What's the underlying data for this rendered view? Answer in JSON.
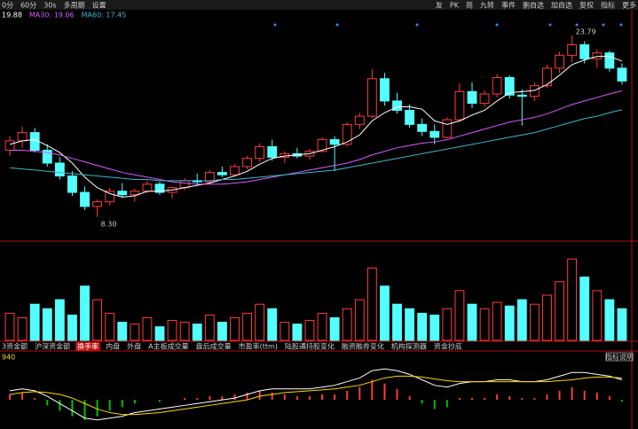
{
  "toolbar": {
    "left": [
      "0分",
      "60分",
      "30s",
      "多周期",
      "设置"
    ],
    "right": [
      "友",
      "PK",
      "简",
      "九转",
      "事件",
      "删自选",
      "加自选",
      "复权",
      "指标",
      "更多"
    ]
  },
  "ma_strip": [
    "19.88",
    "MA30: 19.06",
    "MA60: 17.45"
  ],
  "tabs": [
    "3资金额",
    "沪深资金额",
    "换手率",
    "内盘",
    "外盘",
    "A主板成交量",
    "盘后成交量",
    "市盈率(ttm)",
    "陆股通持股变化",
    "融资融券变化",
    "机构探测器",
    "资金抄底"
  ],
  "macd_label": "940",
  "indicator_button": "指标说明",
  "chart_data": [
    {
      "type": "candlestick",
      "up_color": "#ff3b3b",
      "down_color": "#54ffff",
      "ylim": [
        7,
        25
      ],
      "low_label": "8.30",
      "high_label": "23.79",
      "open": [
        14.0,
        14.8,
        15.5,
        14.0,
        12.9,
        11.8,
        10.4,
        9.2,
        9.6,
        10.5,
        10.2,
        10.5,
        11.1,
        10.4,
        10.8,
        11.4,
        11.3,
        12.1,
        11.9,
        12.6,
        13.3,
        14.3,
        13.4,
        13.7,
        13.5,
        13.9,
        14.9,
        14.5,
        16.2,
        16.9,
        20.1,
        18.2,
        17.4,
        16.2,
        15.6,
        15.1,
        16.6,
        19.0,
        18.0,
        18.8,
        20.2,
        18.7,
        18.6,
        19.5,
        21.0,
        22.1,
        23.0,
        21.8,
        22.3,
        21.0
      ],
      "high": [
        15.2,
        16.0,
        15.9,
        14.5,
        13.4,
        12.2,
        10.9,
        9.8,
        10.8,
        11.2,
        10.7,
        11.4,
        11.3,
        10.9,
        11.6,
        12.0,
        12.3,
        12.6,
        12.8,
        13.5,
        14.6,
        14.9,
        13.9,
        14.2,
        14.1,
        15.1,
        15.2,
        16.4,
        17.2,
        20.9,
        20.6,
        18.9,
        17.9,
        16.7,
        16.2,
        16.8,
        19.7,
        19.8,
        19.1,
        20.5,
        20.4,
        19.2,
        19.8,
        21.3,
        22.4,
        23.79,
        23.3,
        22.6,
        22.5,
        21.4
      ],
      "low": [
        13.5,
        14.2,
        13.8,
        12.6,
        11.5,
        10.1,
        8.9,
        8.3,
        9.3,
        10.0,
        9.6,
        10.3,
        10.2,
        9.9,
        10.6,
        11.0,
        11.1,
        11.7,
        11.8,
        12.4,
        13.0,
        13.1,
        12.9,
        13.3,
        13.2,
        13.8,
        12.2,
        14.3,
        15.8,
        16.7,
        17.8,
        17.1,
        15.9,
        15.2,
        14.5,
        15.0,
        16.4,
        17.6,
        17.7,
        18.5,
        18.4,
        16.1,
        18.2,
        19.3,
        20.6,
        21.5,
        21.4,
        21.0,
        20.7,
        19.6
      ],
      "close": [
        14.8,
        15.5,
        14.0,
        12.9,
        11.8,
        10.4,
        9.2,
        9.6,
        10.5,
        10.2,
        10.5,
        11.1,
        10.4,
        10.8,
        11.4,
        11.3,
        12.1,
        11.9,
        12.6,
        13.3,
        14.3,
        13.4,
        13.7,
        13.5,
        13.9,
        14.9,
        14.5,
        16.2,
        16.9,
        20.1,
        18.2,
        17.4,
        16.2,
        15.6,
        15.1,
        16.6,
        19.0,
        18.0,
        18.8,
        20.2,
        18.7,
        18.6,
        19.5,
        21.0,
        22.1,
        23.0,
        21.8,
        22.3,
        21.0,
        19.9
      ],
      "lines": [
        {
          "color": "#ffffff",
          "values": [
            14.5,
            14.8,
            14.9,
            14.4,
            13.8,
            12.9,
            11.7,
            10.8,
            10.3,
            10.0,
            10.1,
            10.5,
            10.5,
            10.6,
            10.8,
            11.0,
            11.2,
            11.5,
            11.8,
            12.2,
            12.8,
            13.3,
            13.5,
            13.6,
            13.7,
            14.0,
            14.3,
            14.7,
            15.3,
            16.5,
            17.2,
            17.7,
            17.7,
            17.5,
            16.5,
            16.2,
            16.5,
            17.0,
            17.4,
            18.2,
            18.9,
            19.0,
            19.1,
            19.6,
            20.4,
            21.3,
            21.7,
            22.0,
            22.0,
            21.6
          ]
        },
        {
          "color": "#d75cff",
          "values": [
            14.0,
            14.0,
            13.9,
            13.8,
            13.6,
            13.3,
            13.0,
            12.7,
            12.4,
            12.1,
            11.9,
            11.7,
            11.5,
            11.3,
            11.2,
            11.1,
            11.1,
            11.1,
            11.2,
            11.3,
            11.5,
            11.7,
            11.9,
            12.1,
            12.3,
            12.5,
            12.7,
            12.9,
            13.2,
            13.6,
            13.9,
            14.2,
            14.4,
            14.6,
            14.7,
            14.9,
            15.2,
            15.5,
            15.8,
            16.1,
            16.4,
            16.6,
            16.8,
            17.1,
            17.5,
            17.9,
            18.2,
            18.5,
            18.8,
            19.06
          ]
        },
        {
          "color": "#3fb7c8",
          "values": [
            12.5,
            12.4,
            12.3,
            12.2,
            12.1,
            12.0,
            11.9,
            11.8,
            11.7,
            11.6,
            11.5,
            11.5,
            11.4,
            11.4,
            11.4,
            11.4,
            11.4,
            11.5,
            11.5,
            11.6,
            11.7,
            11.8,
            11.9,
            12.0,
            12.1,
            12.2,
            12.3,
            12.5,
            12.7,
            12.9,
            13.1,
            13.3,
            13.5,
            13.7,
            13.9,
            14.1,
            14.3,
            14.5,
            14.7,
            14.9,
            15.1,
            15.3,
            15.5,
            15.8,
            16.1,
            16.4,
            16.7,
            16.9,
            17.2,
            17.45
          ]
        }
      ]
    },
    {
      "type": "bar",
      "ylim": [
        0,
        100
      ],
      "values": [
        30,
        25,
        40,
        35,
        45,
        28,
        60,
        45,
        30,
        20,
        18,
        25,
        15,
        22,
        20,
        18,
        28,
        20,
        25,
        30,
        40,
        35,
        20,
        18,
        22,
        30,
        25,
        35,
        45,
        80,
        60,
        40,
        35,
        30,
        28,
        35,
        55,
        40,
        35,
        42,
        38,
        45,
        40,
        50,
        65,
        90,
        70,
        55,
        45,
        35
      ]
    },
    {
      "type": "bar",
      "ylim": [
        -1.5,
        2
      ],
      "up_color": "#ff3b3b",
      "down_color": "#00c000",
      "values": [
        0.3,
        0.4,
        0.1,
        -0.3,
        -0.6,
        -0.9,
        -1.1,
        -0.9,
        -0.6,
        -0.4,
        -0.2,
        0.0,
        -0.1,
        0.0,
        0.1,
        0.1,
        0.2,
        0.2,
        0.3,
        0.4,
        0.5,
        0.4,
        0.3,
        0.2,
        0.2,
        0.3,
        0.3,
        0.5,
        0.7,
        1.1,
        0.9,
        0.6,
        0.2,
        -0.2,
        -0.5,
        -0.4,
        0.1,
        0.1,
        0.1,
        0.3,
        0.2,
        0.1,
        0.1,
        0.3,
        0.5,
        0.7,
        0.5,
        0.4,
        0.2,
        -0.1
      ],
      "lines": [
        {
          "color": "#ffffff",
          "values": [
            0.5,
            0.6,
            0.5,
            0.2,
            -0.2,
            -0.6,
            -1.0,
            -1.1,
            -1.0,
            -0.9,
            -0.7,
            -0.6,
            -0.5,
            -0.4,
            -0.3,
            -0.2,
            -0.1,
            0.0,
            0.1,
            0.3,
            0.5,
            0.6,
            0.6,
            0.6,
            0.6,
            0.7,
            0.8,
            1.0,
            1.2,
            1.6,
            1.7,
            1.6,
            1.4,
            1.1,
            0.8,
            0.7,
            0.9,
            1.0,
            1.0,
            1.1,
            1.1,
            1.0,
            1.0,
            1.1,
            1.3,
            1.5,
            1.5,
            1.4,
            1.3,
            1.1
          ]
        },
        {
          "color": "#ffd700",
          "values": [
            0.3,
            0.4,
            0.45,
            0.4,
            0.3,
            0.1,
            -0.2,
            -0.5,
            -0.7,
            -0.8,
            -0.8,
            -0.75,
            -0.7,
            -0.6,
            -0.5,
            -0.4,
            -0.3,
            -0.2,
            -0.1,
            0.0,
            0.2,
            0.3,
            0.4,
            0.45,
            0.5,
            0.55,
            0.6,
            0.7,
            0.8,
            1.0,
            1.2,
            1.3,
            1.3,
            1.25,
            1.15,
            1.05,
            1.0,
            1.0,
            1.0,
            1.0,
            1.0,
            1.0,
            1.0,
            1.0,
            1.05,
            1.1,
            1.2,
            1.25,
            1.25,
            1.2
          ]
        }
      ]
    }
  ]
}
